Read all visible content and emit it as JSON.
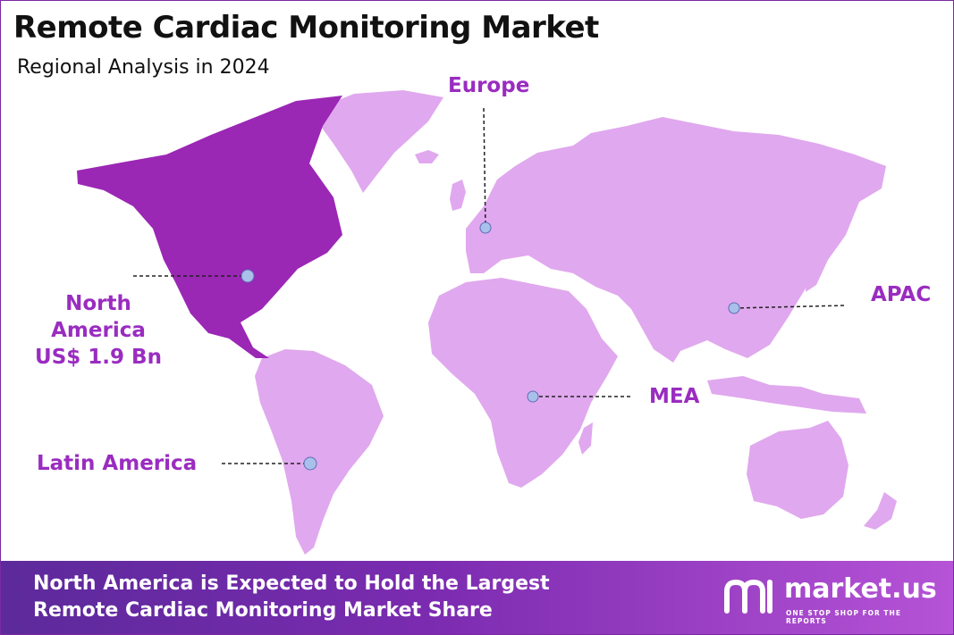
{
  "header": {
    "title": "Remote Cardiac Monitoring Market",
    "subtitle": "Regional Analysis in 2024"
  },
  "regions": [
    {
      "name": "North America",
      "value": "US$ 1.9 Bn",
      "highlighted": true
    },
    {
      "name": "Europe",
      "highlighted": false
    },
    {
      "name": "APAC",
      "highlighted": false
    },
    {
      "name": "MEA",
      "highlighted": false
    },
    {
      "name": "Latin America",
      "highlighted": false
    }
  ],
  "colors": {
    "highlight_region": "#9b27b5",
    "other_regions": "#e0a8ee",
    "label": "#9a2cc0",
    "marker": "#a9c0ea",
    "footer_start": "#5c2a9b",
    "footer_end": "#b653d6"
  },
  "footer": {
    "line1": "North America is Expected to Hold the Largest",
    "line2": "Remote Cardiac Monitoring Market Share"
  },
  "brand": {
    "name": "market.us",
    "tagline": "ONE STOP SHOP FOR THE REPORTS",
    "icon": "market-us-logo-icon"
  }
}
